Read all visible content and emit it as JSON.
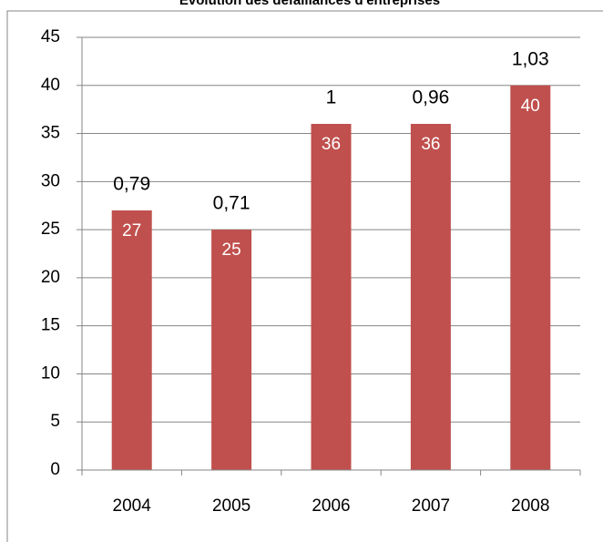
{
  "chart_data": {
    "type": "bar",
    "title": "Évolution des défaillances d'entreprises",
    "categories": [
      "2004",
      "2005",
      "2006",
      "2007",
      "2008"
    ],
    "values": [
      27,
      25,
      36,
      36,
      40
    ],
    "color": "#c0504d",
    "annotations": {
      "values": [
        0.79,
        0.71,
        1,
        0.96,
        1.03
      ],
      "value_labels": [
        "0,79",
        "0,71",
        "1",
        "0,96",
        "1,03"
      ]
    },
    "ylim": [
      0,
      45
    ],
    "yticks": [
      0,
      5,
      10,
      15,
      20,
      25,
      30,
      35,
      40,
      45
    ],
    "grid": true
  }
}
